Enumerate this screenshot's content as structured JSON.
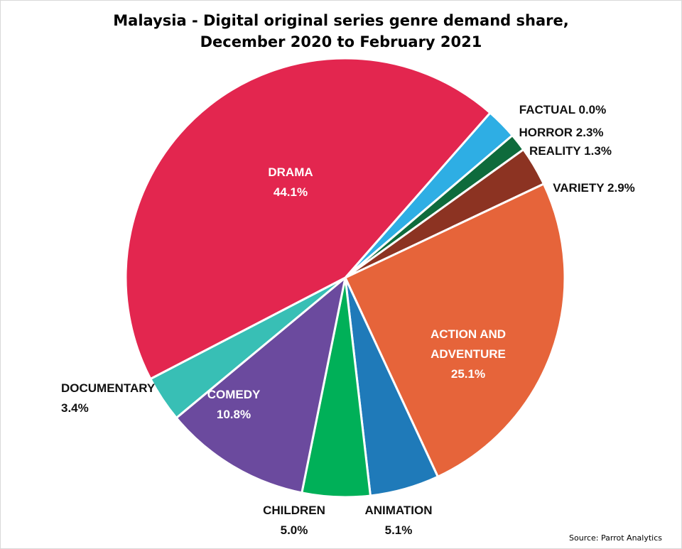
{
  "title_line1": "Malaysia - Digital original series genre demand share,",
  "title_line2": "December 2020 to February 2021",
  "source": "Source: Parrot Analytics",
  "chart_data": {
    "type": "pie",
    "title": "Malaysia - Digital original series genre demand share, December 2020 to February 2021",
    "unit": "%",
    "slices": [
      {
        "label": "FACTUAL",
        "value": 0.0,
        "value_text": "0.0%",
        "color": "#f0f0f0"
      },
      {
        "label": "HORROR",
        "value": 2.3,
        "value_text": "2.3%",
        "color": "#2eaee4"
      },
      {
        "label": "REALITY",
        "value": 1.3,
        "value_text": "1.3%",
        "color": "#0e6b3c"
      },
      {
        "label": "VARIETY",
        "value": 2.9,
        "value_text": "2.9%",
        "color": "#8c3322"
      },
      {
        "label": "ACTION AND ADVENTURE",
        "value": 25.1,
        "value_text": "25.1%",
        "color": "#e6643a"
      },
      {
        "label": "ANIMATION",
        "value": 5.1,
        "value_text": "5.1%",
        "color": "#1f7ab9"
      },
      {
        "label": "CHILDREN",
        "value": 5.0,
        "value_text": "5.0%",
        "color": "#00b058"
      },
      {
        "label": "COMEDY",
        "value": 10.8,
        "value_text": "10.8%",
        "color": "#6b4a9e"
      },
      {
        "label": "DOCUMENTARY",
        "value": 3.4,
        "value_text": "3.4%",
        "color": "#38bfb5"
      },
      {
        "label": "DRAMA",
        "value": 44.1,
        "value_text": "44.1%",
        "color": "#e3264f"
      }
    ]
  }
}
